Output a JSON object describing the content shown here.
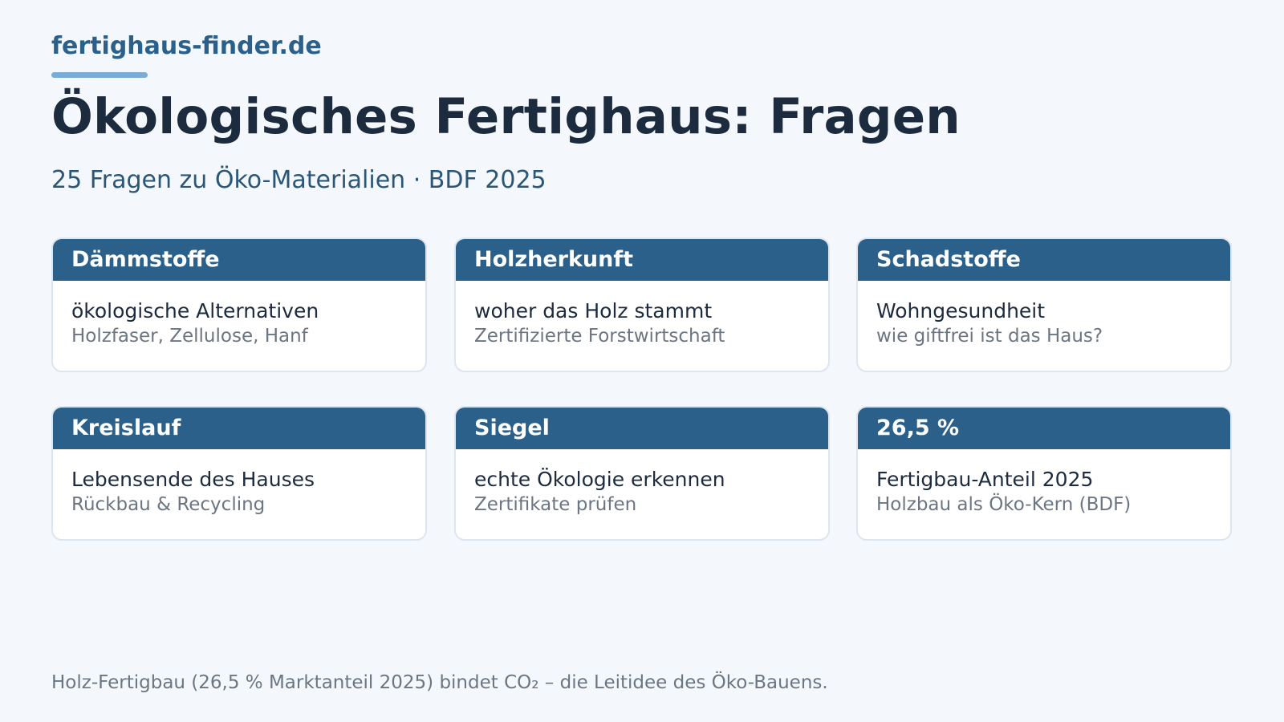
{
  "brand": "fertighaus-finder.de",
  "title": "Ökologisches Fertighaus: Fragen",
  "subtitle": "25 Fragen zu Öko-Materialien · BDF 2025",
  "cards": [
    {
      "header": "Dämmstoffe",
      "main": "ökologische Alternativen",
      "sub": "Holzfaser, Zellulose, Hanf"
    },
    {
      "header": "Holzherkunft",
      "main": "woher das Holz stammt",
      "sub": "Zertifizierte Forstwirtschaft"
    },
    {
      "header": "Schadstoffe",
      "main": "Wohngesundheit",
      "sub": "wie giftfrei ist das Haus?"
    },
    {
      "header": "Kreislauf",
      "main": "Lebensende des Hauses",
      "sub": "Rückbau & Recycling"
    },
    {
      "header": "Siegel",
      "main": "echte Ökologie erkennen",
      "sub": "Zertifikate prüfen"
    },
    {
      "header": "26,5 %",
      "main": "Fertigbau-Anteil 2025",
      "sub": "Holzbau als Öko-Kern (BDF)"
    }
  ],
  "footer": "Holz-Fertigbau (26,5 % Marktanteil 2025) bindet CO₂ – die Leitidee des Öko-Bauens.",
  "colors": {
    "background": "#f4f8fc",
    "accent": "#2a6089",
    "accent_light": "#79acd6",
    "title": "#1c2b3d",
    "muted": "#6b7682"
  }
}
